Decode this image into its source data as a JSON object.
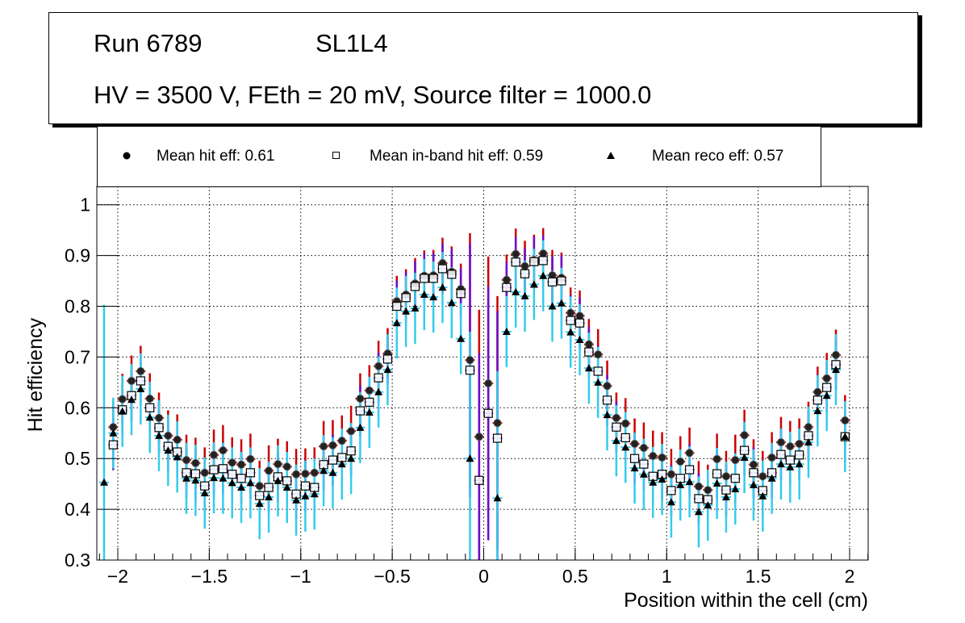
{
  "header": {
    "run": "Run 6789",
    "layer": "SL1L4",
    "conditions": "HV = 3500 V, FEth = 20 mV, Source filter = 1000.0"
  },
  "legend": [
    {
      "marker": "filled-circle",
      "label": "Mean hit  eff: 0.61"
    },
    {
      "marker": "open-square",
      "label": "Mean in-band hit eff: 0.59"
    },
    {
      "marker": "filled-triangle",
      "label": "Mean reco eff: 0.57"
    }
  ],
  "colors": {
    "hit_err_up": "#cc0000",
    "inband_err": "#6a0dcc",
    "reco_err": "#33ccee",
    "grid": "#000000"
  },
  "chart_data": {
    "type": "scatter",
    "title": "Run 6789 SL1L4 — HV = 3500 V, FEth = 20 mV, Source filter = 1000.0",
    "xlabel": "Position within the cell (cm)",
    "ylabel": "Hit efficiency",
    "xlim": [
      -2.11,
      2.11
    ],
    "ylim": [
      0.3,
      1.03
    ],
    "xticks": [
      -2,
      -1.5,
      -1,
      -0.5,
      0,
      0.5,
      1,
      1.5,
      2
    ],
    "xtick_labels": [
      "−2",
      "−1.5",
      "−1",
      "−0.5",
      "0",
      "0.5",
      "1",
      "1.5",
      "2"
    ],
    "yticks": [
      0.3,
      0.4,
      0.5,
      0.6,
      0.7,
      0.8,
      0.9,
      1
    ],
    "ytick_labels": [
      "0.3",
      "0.4",
      "0.5",
      "0.6",
      "0.7",
      "0.8",
      "0.9",
      "1"
    ],
    "grid": true,
    "legend_position": "top",
    "x": [
      -2.075,
      -2.025,
      -1.975,
      -1.925,
      -1.875,
      -1.825,
      -1.775,
      -1.725,
      -1.675,
      -1.625,
      -1.575,
      -1.525,
      -1.475,
      -1.425,
      -1.375,
      -1.325,
      -1.275,
      -1.225,
      -1.175,
      -1.125,
      -1.075,
      -1.025,
      -0.975,
      -0.925,
      -0.875,
      -0.825,
      -0.775,
      -0.725,
      -0.675,
      -0.625,
      -0.575,
      -0.525,
      -0.475,
      -0.425,
      -0.375,
      -0.325,
      -0.275,
      -0.225,
      -0.175,
      -0.125,
      -0.075,
      -0.025,
      0.025,
      0.075,
      0.125,
      0.175,
      0.225,
      0.275,
      0.325,
      0.375,
      0.425,
      0.475,
      0.525,
      0.575,
      0.625,
      0.675,
      0.725,
      0.775,
      0.825,
      0.875,
      0.925,
      0.975,
      1.025,
      1.075,
      1.125,
      1.175,
      1.225,
      1.275,
      1.325,
      1.375,
      1.425,
      1.475,
      1.525,
      1.575,
      1.625,
      1.675,
      1.725,
      1.775,
      1.825,
      1.875,
      1.925,
      1.975
    ],
    "series": [
      {
        "name": "Mean hit  eff: 0.61",
        "marker": "filled-circle",
        "values": [
          null,
          0.562,
          0.617,
          0.653,
          0.672,
          0.618,
          0.58,
          0.545,
          0.537,
          0.497,
          0.491,
          0.472,
          0.507,
          0.516,
          0.492,
          0.488,
          0.499,
          0.446,
          0.476,
          0.489,
          0.484,
          0.469,
          0.47,
          0.472,
          0.524,
          0.526,
          0.535,
          0.554,
          0.618,
          0.634,
          0.682,
          0.707,
          0.81,
          0.823,
          0.845,
          0.86,
          0.861,
          0.885,
          0.868,
          0.834,
          0.694,
          0.543,
          0.648,
          0.57,
          0.852,
          0.903,
          0.879,
          0.891,
          0.904,
          0.861,
          0.856,
          0.787,
          0.781,
          0.725,
          0.705,
          0.643,
          0.58,
          0.569,
          0.529,
          0.521,
          0.505,
          0.502,
          0.469,
          0.494,
          0.511,
          0.445,
          0.438,
          0.499,
          0.465,
          0.497,
          0.546,
          0.488,
          0.465,
          0.502,
          0.532,
          0.524,
          0.529,
          0.562,
          0.631,
          0.658,
          0.704,
          0.575
        ]
      },
      {
        "name": "Mean in-band hit eff: 0.59",
        "marker": "open-square",
        "values": [
          null,
          0.527,
          0.596,
          0.624,
          0.653,
          0.6,
          0.561,
          0.524,
          0.513,
          0.472,
          0.47,
          0.446,
          0.478,
          0.48,
          0.469,
          0.461,
          0.472,
          0.427,
          0.443,
          0.464,
          0.456,
          0.43,
          0.446,
          0.443,
          0.488,
          0.497,
          0.502,
          0.515,
          0.594,
          0.611,
          0.659,
          0.696,
          0.8,
          0.817,
          0.839,
          0.855,
          0.855,
          0.874,
          0.863,
          0.825,
          0.674,
          0.457,
          0.589,
          0.54,
          0.837,
          0.887,
          0.864,
          0.888,
          0.89,
          0.848,
          0.85,
          0.772,
          0.767,
          0.71,
          0.672,
          0.615,
          0.562,
          0.541,
          0.5,
          0.489,
          0.465,
          0.469,
          0.437,
          0.461,
          0.478,
          0.421,
          0.419,
          0.47,
          0.438,
          0.461,
          0.516,
          0.472,
          0.437,
          0.472,
          0.508,
          0.497,
          0.507,
          0.545,
          0.615,
          0.64,
          0.685,
          0.543
        ]
      },
      {
        "name": "Mean reco eff: 0.57",
        "marker": "filled-triangle",
        "values": [
          0.453,
          0.55,
          0.593,
          0.616,
          0.637,
          0.581,
          0.545,
          0.516,
          0.503,
          0.461,
          0.457,
          0.432,
          0.462,
          0.461,
          0.452,
          0.443,
          0.452,
          0.411,
          0.424,
          0.456,
          0.443,
          0.418,
          0.426,
          0.43,
          0.476,
          0.472,
          0.489,
          0.5,
          0.561,
          0.591,
          0.631,
          0.675,
          0.767,
          0.79,
          0.796,
          0.823,
          0.818,
          0.837,
          0.807,
          0.736,
          0.5,
          null,
          null,
          0.422,
          0.75,
          0.828,
          0.82,
          0.843,
          0.86,
          0.8,
          0.806,
          0.749,
          0.734,
          0.678,
          0.65,
          0.586,
          0.535,
          0.522,
          0.481,
          0.469,
          0.453,
          0.459,
          0.414,
          0.448,
          0.454,
          0.395,
          0.408,
          0.451,
          0.424,
          0.44,
          0.502,
          0.448,
          0.426,
          0.461,
          0.489,
          0.483,
          0.489,
          0.532,
          0.594,
          0.624,
          0.675,
          0.543
        ]
      }
    ]
  }
}
